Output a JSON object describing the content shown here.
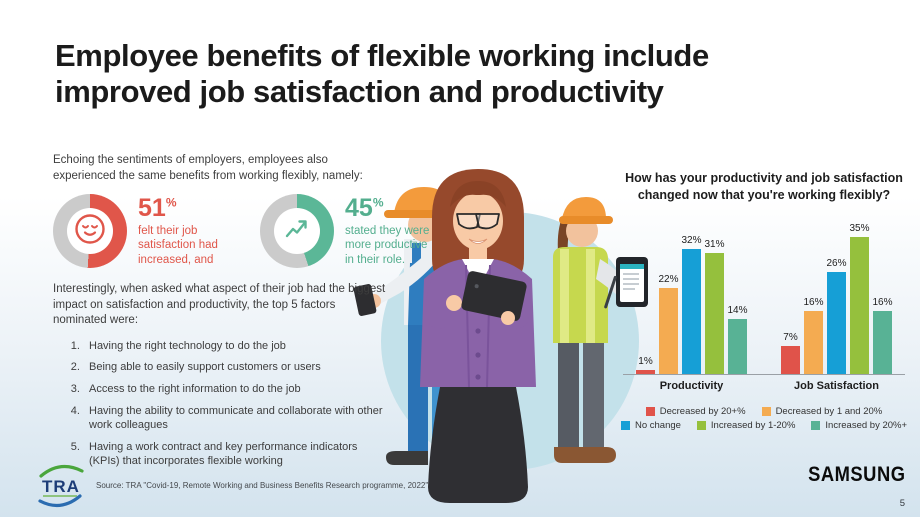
{
  "slide": {
    "title": "Employee benefits of flexible working include improved job satisfaction and productivity",
    "page_number": "5",
    "brand": "SAMSUNG",
    "source": "Source: TRA \"Covid-19, Remote Working and Business Benefits Research programme, 2022\"",
    "tra_logo_text": "TRA"
  },
  "left": {
    "intro": "Echoing the sentiments of employers, employees also experienced the same benefits from working flexibly, namely:",
    "stats": [
      {
        "value": "51",
        "unit": "%",
        "pct": 51,
        "color": "#e0564a",
        "track_color": "#cbcbcb",
        "icon": "smiley-face",
        "label": "felt their job satisfaction had increased, and"
      },
      {
        "value": "45",
        "unit": "%",
        "pct": 45,
        "color": "#5bb797",
        "track_color": "#cbcbcb",
        "icon": "growth-arrow",
        "label": "stated they were more productive in their role."
      }
    ],
    "factors_intro": "Interestingly, when asked what aspect of their job had the biggest impact on satisfaction and productivity, the top 5 factors nominated were:",
    "factors": [
      "Having the right technology to do the job",
      "Being able to easily support customers or users",
      "Access to the right information to do the job",
      "Having the ability to communicate and collaborate with other work colleagues",
      "Having a work contract and key performance indicators (KPIs) that incorporates flexible working"
    ]
  },
  "chart_data": {
    "type": "bar",
    "title": "How has your productivity and job satisfaction changed now that you're working flexibly?",
    "categories": [
      "Productivity",
      "Job Satisfaction"
    ],
    "series": [
      {
        "name": "Decreased by 20+%",
        "color": "#e0534a",
        "values": [
          1,
          7
        ]
      },
      {
        "name": "Decreased by 1 and 20%",
        "color": "#f4ab51",
        "values": [
          22,
          16
        ]
      },
      {
        "name": "No change",
        "color": "#169fd6",
        "values": [
          32,
          26
        ]
      },
      {
        "name": "Increased by 1-20%",
        "color": "#95c03d",
        "values": [
          31,
          35
        ]
      },
      {
        "name": "Increased by 20%+",
        "color": "#58b295",
        "values": [
          14,
          16
        ]
      }
    ],
    "value_suffix": "%",
    "ylim": [
      0,
      38
    ],
    "grid": false,
    "legend_position": "bottom",
    "legend_rows": [
      2,
      3
    ]
  }
}
